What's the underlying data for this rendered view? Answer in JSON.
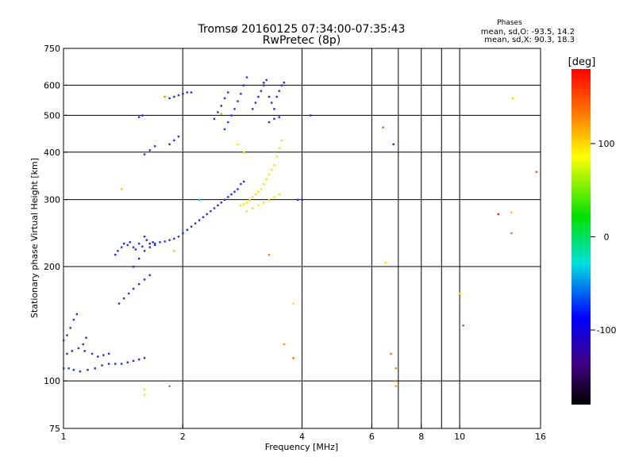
{
  "header": {
    "title_line1": "Tromsø 20160125 07:34:00-07:35:43",
    "title_line2": "RwPretec (8p)",
    "stats_heading": "Phases",
    "stats_o": "mean, sd,O: -93.5, 14.2",
    "stats_x": "mean, sd,X:  90.3, 18.3"
  },
  "colors": {
    "background": "#ffffff",
    "grid": "#000000",
    "o_mode": "#1f2fe0",
    "x_mode": "#f2e600"
  },
  "chart_data": {
    "type": "scatter",
    "xlabel": "Frequency [MHz]",
    "ylabel": "Stationary phase Virtual Height [km]",
    "x_scale": "log",
    "y_scale": "log",
    "xlim": [
      1,
      16
    ],
    "ylim": [
      75,
      750
    ],
    "x_ticks": [
      1,
      2,
      4,
      6,
      8,
      10,
      16
    ],
    "x_tick_labels": [
      "1",
      "2",
      "4",
      "6",
      "8",
      "10",
      "16"
    ],
    "x_gridlines": [
      2,
      4,
      6,
      7,
      8,
      9,
      10
    ],
    "y_ticks": [
      75,
      100,
      200,
      300,
      400,
      500,
      600,
      750
    ],
    "y_tick_labels": [
      "75",
      "100",
      "200",
      "300",
      "400",
      "500",
      "600",
      "750"
    ],
    "y_gridlines": [
      100,
      200,
      300,
      400,
      500,
      600
    ],
    "grid": true,
    "colorbar": {
      "label": "[deg]",
      "range": [
        -180,
        180
      ],
      "ticks": [
        100,
        0,
        -100
      ],
      "tick_labels": [
        "100",
        "0",
        "-100"
      ],
      "position": "right"
    },
    "series": [
      {
        "mode": "O",
        "phase_deg": -93.5,
        "x": [
          1.0,
          1.03,
          1.06,
          1.1,
          1.15,
          1.2,
          1.25,
          1.3,
          1.35,
          1.4,
          1.45,
          1.5,
          1.55,
          1.6,
          1.02,
          1.05,
          1.09,
          1.13,
          1.18,
          1.22,
          1.26,
          1.3,
          1.0,
          1.02,
          1.04,
          1.06,
          1.08,
          1.12,
          1.14,
          1.35,
          1.37,
          1.4,
          1.42,
          1.45,
          1.47,
          1.5,
          1.52,
          1.55,
          1.58,
          1.6,
          1.62,
          1.65,
          1.68,
          1.7,
          1.38,
          1.42,
          1.46,
          1.5,
          1.55,
          1.6,
          1.65,
          1.5,
          1.55,
          1.6,
          1.65,
          1.7,
          1.75,
          1.8,
          1.85,
          1.9,
          1.95,
          2.0,
          2.05,
          2.1,
          2.15,
          2.2,
          2.25,
          2.3,
          2.35,
          2.4,
          2.45,
          2.5,
          2.55,
          2.6,
          2.65,
          2.7,
          2.75,
          2.8,
          2.85,
          2.55,
          2.6,
          2.65,
          2.7,
          2.75,
          2.8,
          2.85,
          2.9,
          2.4,
          2.45,
          2.5,
          2.55,
          2.6,
          1.85,
          1.9,
          1.95,
          2.0,
          2.05,
          2.1,
          1.6,
          1.65,
          1.7,
          1.55,
          1.58,
          1.85,
          1.9,
          1.95,
          3.0,
          3.05,
          3.1,
          3.15,
          3.2,
          3.25,
          3.3,
          3.35,
          3.4,
          3.45,
          3.5,
          3.55,
          3.6,
          3.3,
          3.4,
          3.5,
          3.2,
          3.9,
          4.0,
          6.8,
          4.2
        ],
        "y": [
          108,
          108,
          107,
          106,
          107,
          108,
          110,
          111,
          111,
          111,
          112,
          113,
          114,
          115,
          118,
          120,
          122,
          120,
          118,
          116,
          117,
          118,
          128,
          132,
          138,
          145,
          150,
          125,
          130,
          215,
          220,
          225,
          230,
          228,
          232,
          225,
          222,
          230,
          226,
          240,
          235,
          230,
          232,
          228,
          160,
          165,
          170,
          175,
          180,
          185,
          190,
          200,
          210,
          220,
          225,
          230,
          232,
          233,
          235,
          237,
          240,
          245,
          250,
          255,
          260,
          265,
          270,
          275,
          280,
          285,
          290,
          295,
          300,
          305,
          310,
          315,
          320,
          330,
          335,
          460,
          480,
          500,
          520,
          545,
          570,
          600,
          630,
          490,
          510,
          530,
          555,
          575,
          555,
          560,
          565,
          570,
          575,
          575,
          395,
          405,
          415,
          495,
          500,
          420,
          430,
          440,
          520,
          540,
          560,
          580,
          600,
          620,
          560,
          540,
          520,
          560,
          580,
          600,
          610,
          480,
          490,
          495,
          610,
          300,
          300,
          420,
          500
        ]
      },
      {
        "mode": "X",
        "phase_deg": 90.3,
        "x": [
          2.8,
          2.85,
          2.9,
          2.95,
          3.0,
          3.05,
          3.1,
          3.15,
          3.2,
          3.25,
          3.3,
          3.35,
          3.4,
          3.45,
          3.5,
          3.55,
          2.9,
          3.0,
          3.1,
          3.2,
          3.3,
          3.4,
          3.5,
          2.75,
          2.85
        ],
        "y": [
          290,
          292,
          295,
          300,
          305,
          310,
          315,
          320,
          330,
          340,
          350,
          360,
          370,
          390,
          410,
          430,
          280,
          285,
          290,
          295,
          300,
          305,
          310,
          420,
          400
        ]
      },
      {
        "mode": "scattered",
        "x": [
          6.5,
          6.7,
          6.9,
          6.85,
          6.9,
          10.0,
          10.2,
          12.5,
          13.5,
          13.6,
          13.5,
          15.6,
          3.3,
          3.6,
          3.8,
          3.8,
          1.6,
          1.6,
          1.85,
          1.8,
          1.4,
          2.5,
          6.4,
          2.2,
          1.9
        ],
        "y": [
          205,
          118,
          108,
          100,
          97,
          170,
          140,
          275,
          278,
          555,
          245,
          355,
          215,
          125,
          115,
          160,
          95,
          92,
          97,
          560,
          320,
          505,
          465,
          300,
          220
        ],
        "colors": [
          "#f3e400",
          "#ff6a00",
          "#ff7a00",
          "#ff8800",
          "#ffa000",
          "#ffd800",
          "#3a6cff",
          "#d03020",
          "#f0d000",
          "#f0e000",
          "#ff7000",
          "#ff5000",
          "#ff8000",
          "#ff9000",
          "#ff6000",
          "#f5e000",
          "#f6e000",
          "#fff000",
          "#30c030",
          "#ff8000",
          "#e8d000",
          "#ff9900",
          "#ff6000",
          "#00d0d0",
          "#e0d000"
        ]
      }
    ]
  }
}
